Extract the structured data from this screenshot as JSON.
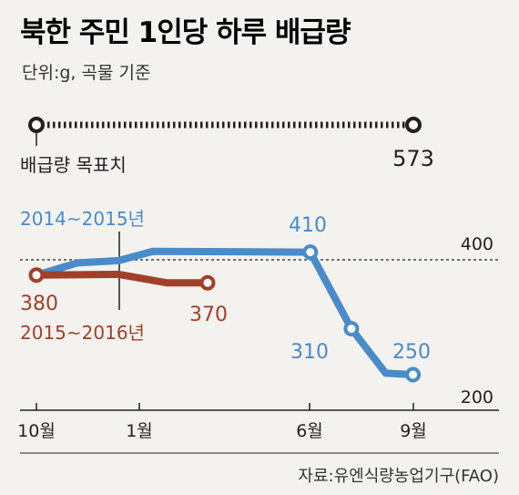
{
  "title": "북한 주민 1인당 하루 배급량",
  "subtitle": "단위:g, 곡물 기준",
  "target": {
    "label": "배급량 목표치",
    "value": 573,
    "value_label": "573"
  },
  "source": "자료:유엔식량농업기구(FAO)",
  "colors": {
    "series_2014": "#4a8bc9",
    "series_2015": "#a0402a",
    "text": "#231f20",
    "background": "#f4f2ee"
  },
  "chart_data": {
    "type": "line",
    "title": "북한 주민 1인당 하루 배급량",
    "subtitle": "단위:g, 곡물 기준",
    "x_ticks": [
      "10월",
      "1월",
      "6월",
      "9월"
    ],
    "y_ticks": [
      {
        "value": 400,
        "label": "400"
      },
      {
        "value": 200,
        "label": "200"
      }
    ],
    "reference_line": {
      "value": 400,
      "style": "dashed"
    },
    "target_line": {
      "value": 573,
      "label": "배급량 목표치"
    },
    "series": [
      {
        "name": "2014~2015년",
        "color": "#4a8bc9",
        "points": [
          {
            "x": 0,
            "y": 380
          },
          {
            "x": 1.2,
            "y": 396
          },
          {
            "x": 2.4,
            "y": 399
          },
          {
            "x": 3.4,
            "y": 411
          },
          {
            "x": 8,
            "y": 410,
            "label": "410"
          },
          {
            "x": 9.2,
            "y": 310,
            "label": "310"
          },
          {
            "x": 10.2,
            "y": 252
          },
          {
            "x": 11,
            "y": 250,
            "label": "250"
          }
        ]
      },
      {
        "name": "2015~2016년",
        "color": "#a0402a",
        "points": [
          {
            "x": 0,
            "y": 380,
            "label": "380"
          },
          {
            "x": 2.4,
            "y": 381
          },
          {
            "x": 3.8,
            "y": 370
          },
          {
            "x": 5,
            "y": 370,
            "label": "370"
          }
        ]
      }
    ]
  }
}
